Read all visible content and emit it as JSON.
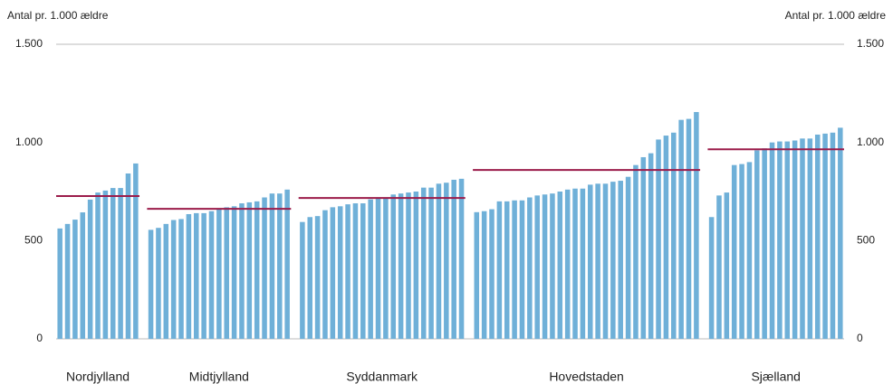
{
  "chart_data": {
    "type": "bar",
    "y_label": "Antal pr. 1.000 ældre",
    "y2_label": "Antal pr. 1.000 ældre",
    "color": "#6fb0d8",
    "average_color": "#9b1b4a",
    "ylim": [
      0,
      1500
    ],
    "yticks": [
      0,
      500,
      {
        "value": 1000,
        "label": "1.000"
      },
      {
        "value": 1500,
        "label": "1.500"
      }
    ],
    "y2lim": [
      0,
      1500
    ],
    "y2ticks": [
      0,
      500,
      {
        "value": 1000,
        "label": "1.000"
      },
      {
        "value": 1500,
        "label": "1.500"
      }
    ],
    "groups": [
      {
        "name": "Nordjylland",
        "average": 727,
        "values": [
          562,
          585,
          607,
          644,
          709,
          745,
          755,
          768,
          768,
          842,
          893
        ]
      },
      {
        "name": "Midtjylland",
        "average": 662,
        "values": [
          555,
          565,
          585,
          605,
          610,
          635,
          640,
          640,
          650,
          660,
          670,
          675,
          690,
          695,
          700,
          720,
          740,
          740,
          760
        ]
      },
      {
        "name": "Syddanmark",
        "average": 717,
        "values": [
          595,
          620,
          625,
          655,
          670,
          675,
          685,
          690,
          690,
          710,
          715,
          720,
          735,
          740,
          745,
          750,
          770,
          770,
          790,
          795,
          810,
          815
        ]
      },
      {
        "name": "Hovedstaden",
        "average": 860,
        "values": [
          645,
          650,
          660,
          700,
          700,
          705,
          705,
          720,
          730,
          735,
          740,
          750,
          760,
          765,
          765,
          785,
          790,
          790,
          800,
          805,
          825,
          885,
          925,
          945,
          1015,
          1035,
          1050,
          1115,
          1120,
          1155
        ]
      },
      {
        "name": "Sjælland",
        "average": 965,
        "values": [
          620,
          730,
          745,
          885,
          890,
          900,
          960,
          970,
          1000,
          1005,
          1005,
          1010,
          1020,
          1020,
          1040,
          1045,
          1050,
          1075
        ]
      }
    ]
  }
}
